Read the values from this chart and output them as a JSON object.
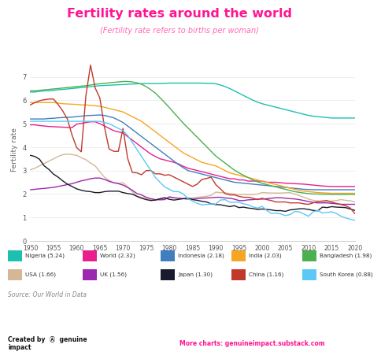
{
  "title": "Fertility rates around the world",
  "subtitle": "(Fertility rate refers to births per woman)",
  "ylabel": "Fertility rate",
  "source": "Source: Our World in Data",
  "footer_right": "More charts: genuineimpact.substack.com",
  "bg_color": "#ffffff",
  "title_color": "#ff1493",
  "subtitle_color": "#ff69b4",
  "years": [
    1950,
    1951,
    1952,
    1953,
    1954,
    1955,
    1956,
    1957,
    1958,
    1959,
    1960,
    1961,
    1962,
    1963,
    1964,
    1965,
    1966,
    1967,
    1968,
    1969,
    1970,
    1971,
    1972,
    1973,
    1974,
    1975,
    1976,
    1977,
    1978,
    1979,
    1980,
    1981,
    1982,
    1983,
    1984,
    1985,
    1986,
    1987,
    1988,
    1989,
    1990,
    1991,
    1992,
    1993,
    1994,
    1995,
    1996,
    1997,
    1998,
    1999,
    2000,
    2001,
    2002,
    2003,
    2004,
    2005,
    2006,
    2007,
    2008,
    2009,
    2010,
    2011,
    2012,
    2013,
    2014,
    2015,
    2016,
    2017,
    2018,
    2019,
    2020
  ],
  "series": [
    {
      "name": "Nigeria",
      "value": "5.24",
      "color": "#1dbfb0",
      "data": [
        6.35,
        6.35,
        6.38,
        6.4,
        6.4,
        6.42,
        6.45,
        6.46,
        6.48,
        6.5,
        6.52,
        6.54,
        6.56,
        6.58,
        6.6,
        6.62,
        6.63,
        6.64,
        6.65,
        6.66,
        6.67,
        6.68,
        6.69,
        6.7,
        6.71,
        6.71,
        6.71,
        6.71,
        6.71,
        6.72,
        6.73,
        6.73,
        6.73,
        6.73,
        6.73,
        6.73,
        6.73,
        6.73,
        6.72,
        6.72,
        6.7,
        6.65,
        6.58,
        6.5,
        6.4,
        6.3,
        6.2,
        6.1,
        6.0,
        5.92,
        5.85,
        5.8,
        5.75,
        5.7,
        5.65,
        5.6,
        5.55,
        5.5,
        5.45,
        5.4,
        5.35,
        5.32,
        5.3,
        5.28,
        5.26,
        5.24,
        5.24,
        5.24,
        5.24,
        5.24,
        5.24
      ]
    },
    {
      "name": "World",
      "value": "2.32",
      "color": "#e91e8c",
      "data": [
        4.95,
        4.95,
        4.92,
        4.9,
        4.88,
        4.87,
        4.86,
        4.85,
        4.84,
        4.83,
        4.98,
        5.01,
        5.05,
        5.08,
        5.08,
        5.0,
        4.9,
        4.8,
        4.7,
        4.65,
        4.6,
        4.45,
        4.3,
        4.15,
        4.0,
        3.85,
        3.7,
        3.6,
        3.5,
        3.45,
        3.4,
        3.35,
        3.28,
        3.18,
        3.1,
        3.05,
        3.0,
        2.95,
        2.9,
        2.85,
        2.8,
        2.75,
        2.7,
        2.65,
        2.65,
        2.6,
        2.6,
        2.55,
        2.55,
        2.55,
        2.55,
        2.5,
        2.5,
        2.5,
        2.48,
        2.46,
        2.45,
        2.44,
        2.43,
        2.42,
        2.4,
        2.38,
        2.36,
        2.34,
        2.33,
        2.32,
        2.32,
        2.32,
        2.32,
        2.32,
        2.32
      ]
    },
    {
      "name": "Indonesia",
      "value": "2.18",
      "color": "#3f7fbf",
      "data": [
        5.2,
        5.2,
        5.2,
        5.2,
        5.22,
        5.23,
        5.25,
        5.26,
        5.27,
        5.28,
        5.3,
        5.32,
        5.34,
        5.35,
        5.36,
        5.37,
        5.35,
        5.3,
        5.25,
        5.15,
        5.05,
        4.9,
        4.75,
        4.6,
        4.45,
        4.3,
        4.15,
        4.0,
        3.85,
        3.7,
        3.55,
        3.4,
        3.25,
        3.12,
        3.0,
        2.95,
        2.9,
        2.85,
        2.8,
        2.75,
        2.7,
        2.65,
        2.6,
        2.55,
        2.5,
        2.48,
        2.46,
        2.44,
        2.42,
        2.4,
        2.38,
        2.36,
        2.34,
        2.32,
        2.3,
        2.28,
        2.26,
        2.24,
        2.22,
        2.2,
        2.19,
        2.18,
        2.18,
        2.18,
        2.18,
        2.18,
        2.18,
        2.18,
        2.18,
        2.18,
        2.18
      ]
    },
    {
      "name": "India",
      "value": "2.03",
      "color": "#f5a623",
      "data": [
        5.9,
        5.9,
        5.9,
        5.9,
        5.9,
        5.9,
        5.88,
        5.85,
        5.84,
        5.83,
        5.82,
        5.8,
        5.8,
        5.78,
        5.76,
        5.74,
        5.7,
        5.65,
        5.6,
        5.55,
        5.5,
        5.4,
        5.3,
        5.2,
        5.1,
        4.95,
        4.8,
        4.65,
        4.5,
        4.35,
        4.2,
        4.05,
        3.9,
        3.75,
        3.65,
        3.55,
        3.45,
        3.35,
        3.3,
        3.25,
        3.2,
        3.1,
        3.0,
        2.9,
        2.85,
        2.8,
        2.75,
        2.7,
        2.65,
        2.6,
        2.55,
        2.5,
        2.45,
        2.4,
        2.35,
        2.3,
        2.25,
        2.2,
        2.15,
        2.12,
        2.1,
        2.08,
        2.06,
        2.05,
        2.04,
        2.03,
        2.03,
        2.03,
        2.03,
        2.03,
        2.03
      ]
    },
    {
      "name": "Bangladesh",
      "value": "1.98",
      "color": "#4caf50",
      "data": [
        6.4,
        6.4,
        6.42,
        6.44,
        6.46,
        6.48,
        6.5,
        6.52,
        6.54,
        6.56,
        6.58,
        6.6,
        6.62,
        6.65,
        6.68,
        6.7,
        6.72,
        6.74,
        6.76,
        6.78,
        6.8,
        6.8,
        6.78,
        6.74,
        6.68,
        6.58,
        6.45,
        6.3,
        6.1,
        5.9,
        5.68,
        5.46,
        5.24,
        5.02,
        4.82,
        4.62,
        4.42,
        4.22,
        4.02,
        3.82,
        3.62,
        3.47,
        3.32,
        3.17,
        3.02,
        2.9,
        2.8,
        2.7,
        2.6,
        2.52,
        2.46,
        2.4,
        2.35,
        2.3,
        2.25,
        2.2,
        2.15,
        2.1,
        2.07,
        2.04,
        2.02,
        2.0,
        2.0,
        1.99,
        1.99,
        1.98,
        1.98,
        1.98,
        1.98,
        1.98,
        1.98
      ]
    },
    {
      "name": "USA",
      "value": "1.66",
      "color": "#d4b896",
      "data": [
        3.03,
        3.1,
        3.2,
        3.3,
        3.4,
        3.5,
        3.6,
        3.68,
        3.7,
        3.68,
        3.65,
        3.55,
        3.46,
        3.32,
        3.2,
        2.95,
        2.72,
        2.58,
        2.48,
        2.46,
        2.48,
        2.3,
        2.1,
        1.9,
        1.86,
        1.8,
        1.76,
        1.75,
        1.78,
        1.82,
        1.85,
        1.83,
        1.82,
        1.8,
        1.82,
        1.84,
        1.86,
        1.88,
        1.9,
        1.94,
        2.08,
        2.06,
        2.05,
        2.02,
        2.0,
        1.98,
        1.98,
        1.97,
        1.97,
        2.0,
        2.06,
        2.05,
        2.04,
        2.04,
        2.04,
        2.05,
        2.06,
        2.0,
        1.93,
        1.86,
        1.78,
        1.73,
        1.7,
        1.68,
        1.68,
        1.7,
        1.72,
        1.76,
        1.73,
        1.71,
        1.66
      ]
    },
    {
      "name": "UK",
      "value": "1.56",
      "color": "#9c27b0",
      "data": [
        2.18,
        2.2,
        2.22,
        2.24,
        2.26,
        2.28,
        2.32,
        2.36,
        2.4,
        2.44,
        2.5,
        2.56,
        2.6,
        2.65,
        2.68,
        2.68,
        2.62,
        2.54,
        2.48,
        2.44,
        2.38,
        2.28,
        2.16,
        2.02,
        1.96,
        1.86,
        1.8,
        1.76,
        1.75,
        1.76,
        1.88,
        1.84,
        1.82,
        1.8,
        1.78,
        1.78,
        1.8,
        1.82,
        1.83,
        1.84,
        1.86,
        1.86,
        1.83,
        1.82,
        1.78,
        1.72,
        1.72,
        1.75,
        1.76,
        1.78,
        1.78,
        1.8,
        1.82,
        1.84,
        1.84,
        1.82,
        1.8,
        1.79,
        1.76,
        1.72,
        1.68,
        1.64,
        1.62,
        1.62,
        1.62,
        1.6,
        1.58,
        1.56,
        1.56,
        1.56,
        1.56
      ]
    },
    {
      "name": "Japan",
      "value": "1.30",
      "color": "#1a1a2e",
      "data": [
        3.65,
        3.6,
        3.48,
        3.2,
        3.05,
        2.85,
        2.72,
        2.56,
        2.42,
        2.32,
        2.22,
        2.16,
        2.12,
        2.1,
        2.06,
        2.06,
        2.1,
        2.12,
        2.12,
        2.12,
        2.06,
        2.02,
        1.99,
        1.9,
        1.82,
        1.76,
        1.72,
        1.74,
        1.8,
        1.84,
        1.77,
        1.74,
        1.77,
        1.8,
        1.82,
        1.76,
        1.73,
        1.69,
        1.66,
        1.58,
        1.55,
        1.54,
        1.5,
        1.46,
        1.5,
        1.42,
        1.44,
        1.4,
        1.38,
        1.34,
        1.36,
        1.34,
        1.32,
        1.29,
        1.29,
        1.26,
        1.32,
        1.34,
        1.37,
        1.37,
        1.34,
        1.3,
        1.28,
        1.44,
        1.42,
        1.46,
        1.44,
        1.43,
        1.42,
        1.36,
        1.3
      ]
    },
    {
      "name": "China",
      "value": "1.16",
      "color": "#c0392b",
      "data": [
        5.8,
        5.9,
        5.98,
        6.02,
        6.05,
        6.05,
        5.82,
        5.54,
        5.2,
        4.52,
        3.98,
        3.8,
        6.2,
        7.5,
        6.52,
        6.1,
        4.86,
        3.92,
        3.82,
        3.82,
        4.8,
        3.52,
        2.92,
        2.9,
        2.82,
        3.0,
        3.0,
        2.86,
        2.86,
        2.8,
        2.82,
        2.72,
        2.62,
        2.52,
        2.42,
        2.32,
        2.42,
        2.62,
        2.66,
        2.72,
        2.4,
        2.22,
        2.02,
        1.96,
        1.96,
        1.9,
        1.86,
        1.86,
        1.82,
        1.76,
        1.82,
        1.76,
        1.72,
        1.66,
        1.66,
        1.66,
        1.62,
        1.62,
        1.62,
        1.58,
        1.56,
        1.62,
        1.68,
        1.7,
        1.72,
        1.65,
        1.6,
        1.55,
        1.5,
        1.4,
        1.16
      ]
    },
    {
      "name": "South Korea",
      "value": "0.88",
      "color": "#5bc8f5",
      "data": [
        5.1,
        5.1,
        5.1,
        5.1,
        5.1,
        5.1,
        5.1,
        5.1,
        5.1,
        5.1,
        5.1,
        5.1,
        5.1,
        5.1,
        5.1,
        5.1,
        5.05,
        5.0,
        4.9,
        4.8,
        4.7,
        4.5,
        4.2,
        3.9,
        3.6,
        3.3,
        3.0,
        2.7,
        2.5,
        2.3,
        2.2,
        2.1,
        2.1,
        2.0,
        1.8,
        1.7,
        1.6,
        1.54,
        1.55,
        1.58,
        1.57,
        1.74,
        1.76,
        1.65,
        1.65,
        1.65,
        1.58,
        1.54,
        1.45,
        1.4,
        1.47,
        1.3,
        1.17,
        1.18,
        1.15,
        1.08,
        1.12,
        1.25,
        1.24,
        1.15,
        1.05,
        1.24,
        1.3,
        1.19,
        1.21,
        1.24,
        1.17,
        1.05,
        0.98,
        0.92,
        0.88
      ]
    }
  ],
  "legend": [
    {
      "name": "Nigeria",
      "value": "5.24",
      "color": "#1dbfb0"
    },
    {
      "name": "World",
      "value": "2.32",
      "color": "#e91e8c"
    },
    {
      "name": "Indonesia",
      "value": "2.18",
      "color": "#3f7fbf"
    },
    {
      "name": "India",
      "value": "2.03",
      "color": "#f5a623"
    },
    {
      "name": "Bangladesh",
      "value": "1.98",
      "color": "#4caf50"
    },
    {
      "name": "USA",
      "value": "1.66",
      "color": "#d4b896"
    },
    {
      "name": "UK",
      "value": "1.56",
      "color": "#9c27b0"
    },
    {
      "name": "Japan",
      "value": "1.30",
      "color": "#1a1a2e"
    },
    {
      "name": "China",
      "value": "1.16",
      "color": "#c0392b"
    },
    {
      "name": "South Korea",
      "value": "0.88",
      "color": "#5bc8f5"
    }
  ]
}
